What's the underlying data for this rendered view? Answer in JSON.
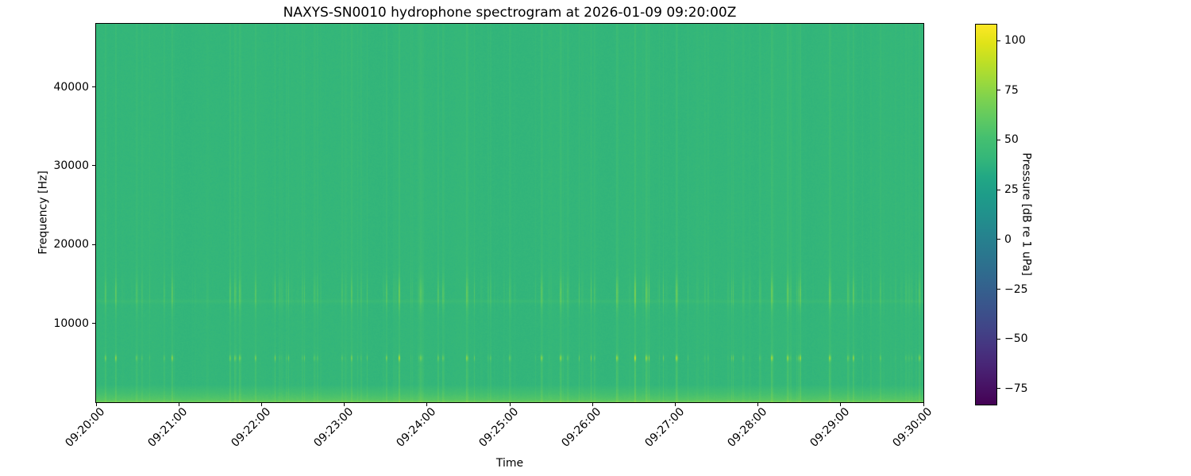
{
  "chart_data": {
    "type": "heatmap",
    "subtype": "spectrogram",
    "title": "NAXYS-SN0010 hydrophone spectrogram at 2026-01-09 09:20:00Z",
    "xlabel": "Time",
    "ylabel": "Frequency [Hz]",
    "x_ticks": [
      "09:20:00",
      "09:21:00",
      "09:22:00",
      "09:23:00",
      "09:24:00",
      "09:25:00",
      "09:26:00",
      "09:27:00",
      "09:28:00",
      "09:29:00",
      "09:30:00"
    ],
    "x_span_seconds": 600,
    "ylim": [
      0,
      48000
    ],
    "y_ticks": [
      10000,
      20000,
      30000,
      40000
    ],
    "grid": false,
    "colorbar": {
      "label": "Pressure [dB re 1 uPa]",
      "tick_values": [
        100,
        75,
        50,
        25,
        0,
        -25,
        -50,
        -75
      ],
      "tick_labels": [
        "100",
        "75",
        "50",
        "25",
        "0",
        "−25",
        "−50",
        "−75"
      ],
      "clim": [
        -83,
        108
      ],
      "colormap": "viridis"
    },
    "colormap_stops": [
      [
        0.0,
        "#440154"
      ],
      [
        0.05,
        "#471365"
      ],
      [
        0.1,
        "#482475"
      ],
      [
        0.15,
        "#463480"
      ],
      [
        0.2,
        "#414487"
      ],
      [
        0.25,
        "#3b528b"
      ],
      [
        0.3,
        "#355f8d"
      ],
      [
        0.35,
        "#2f6c8e"
      ],
      [
        0.4,
        "#2a788e"
      ],
      [
        0.45,
        "#25848e"
      ],
      [
        0.5,
        "#21918c"
      ],
      [
        0.55,
        "#1e9c89"
      ],
      [
        0.6,
        "#22a884"
      ],
      [
        0.65,
        "#35b779"
      ],
      [
        0.7,
        "#44bf70"
      ],
      [
        0.75,
        "#5ec962"
      ],
      [
        0.8,
        "#7ad151"
      ],
      [
        0.85,
        "#9bd93c"
      ],
      [
        0.9,
        "#bddf26"
      ],
      [
        0.95,
        "#dfe318"
      ],
      [
        1.0,
        "#fde725"
      ]
    ],
    "features": [
      {
        "kind": "background",
        "level_db": 41,
        "color": "#35b779"
      },
      {
        "kind": "tonal-band",
        "center_hz": 5600,
        "bandwidth_hz": 600,
        "description": "bright impulsive yellow-green dashes",
        "peak_db": 89
      },
      {
        "kind": "streak-band",
        "freq_low_hz": 12000,
        "freq_high_hz": 15500,
        "description": "dense lighter vertical streaks",
        "peak_db": 69
      },
      {
        "kind": "faint-horizontal-line",
        "freq_hz": 12800,
        "boost_db": 3.5
      },
      {
        "kind": "low-freq-boost",
        "below_hz": 2200,
        "surface_db": 66,
        "description": "brighter gradient at bottom edge"
      },
      {
        "kind": "broadband-transients",
        "description": "narrow vertical streaks spanning all frequencies"
      }
    ],
    "synthesis": {
      "seed": 7,
      "impulse_prob": 0.17,
      "background_db": 41,
      "broadband_gain_db": 6,
      "tone_center_hz": 5600,
      "tone_sigma_hz": 260,
      "tone_gain_db": 40,
      "mid_center_hz": 13800,
      "mid_sigma_hz": 1500,
      "mid_gain_db": 22,
      "low_center_hz": 3300,
      "low_sigma_hz": 1900,
      "low_gain_db": 9,
      "line_center_hz": 12800,
      "line_sigma_hz": 160,
      "line_boost_db": 3.5,
      "lowfreq_boost_db": 19,
      "lowfreq_edge_db": 6,
      "noise_db": 2.4
    }
  }
}
